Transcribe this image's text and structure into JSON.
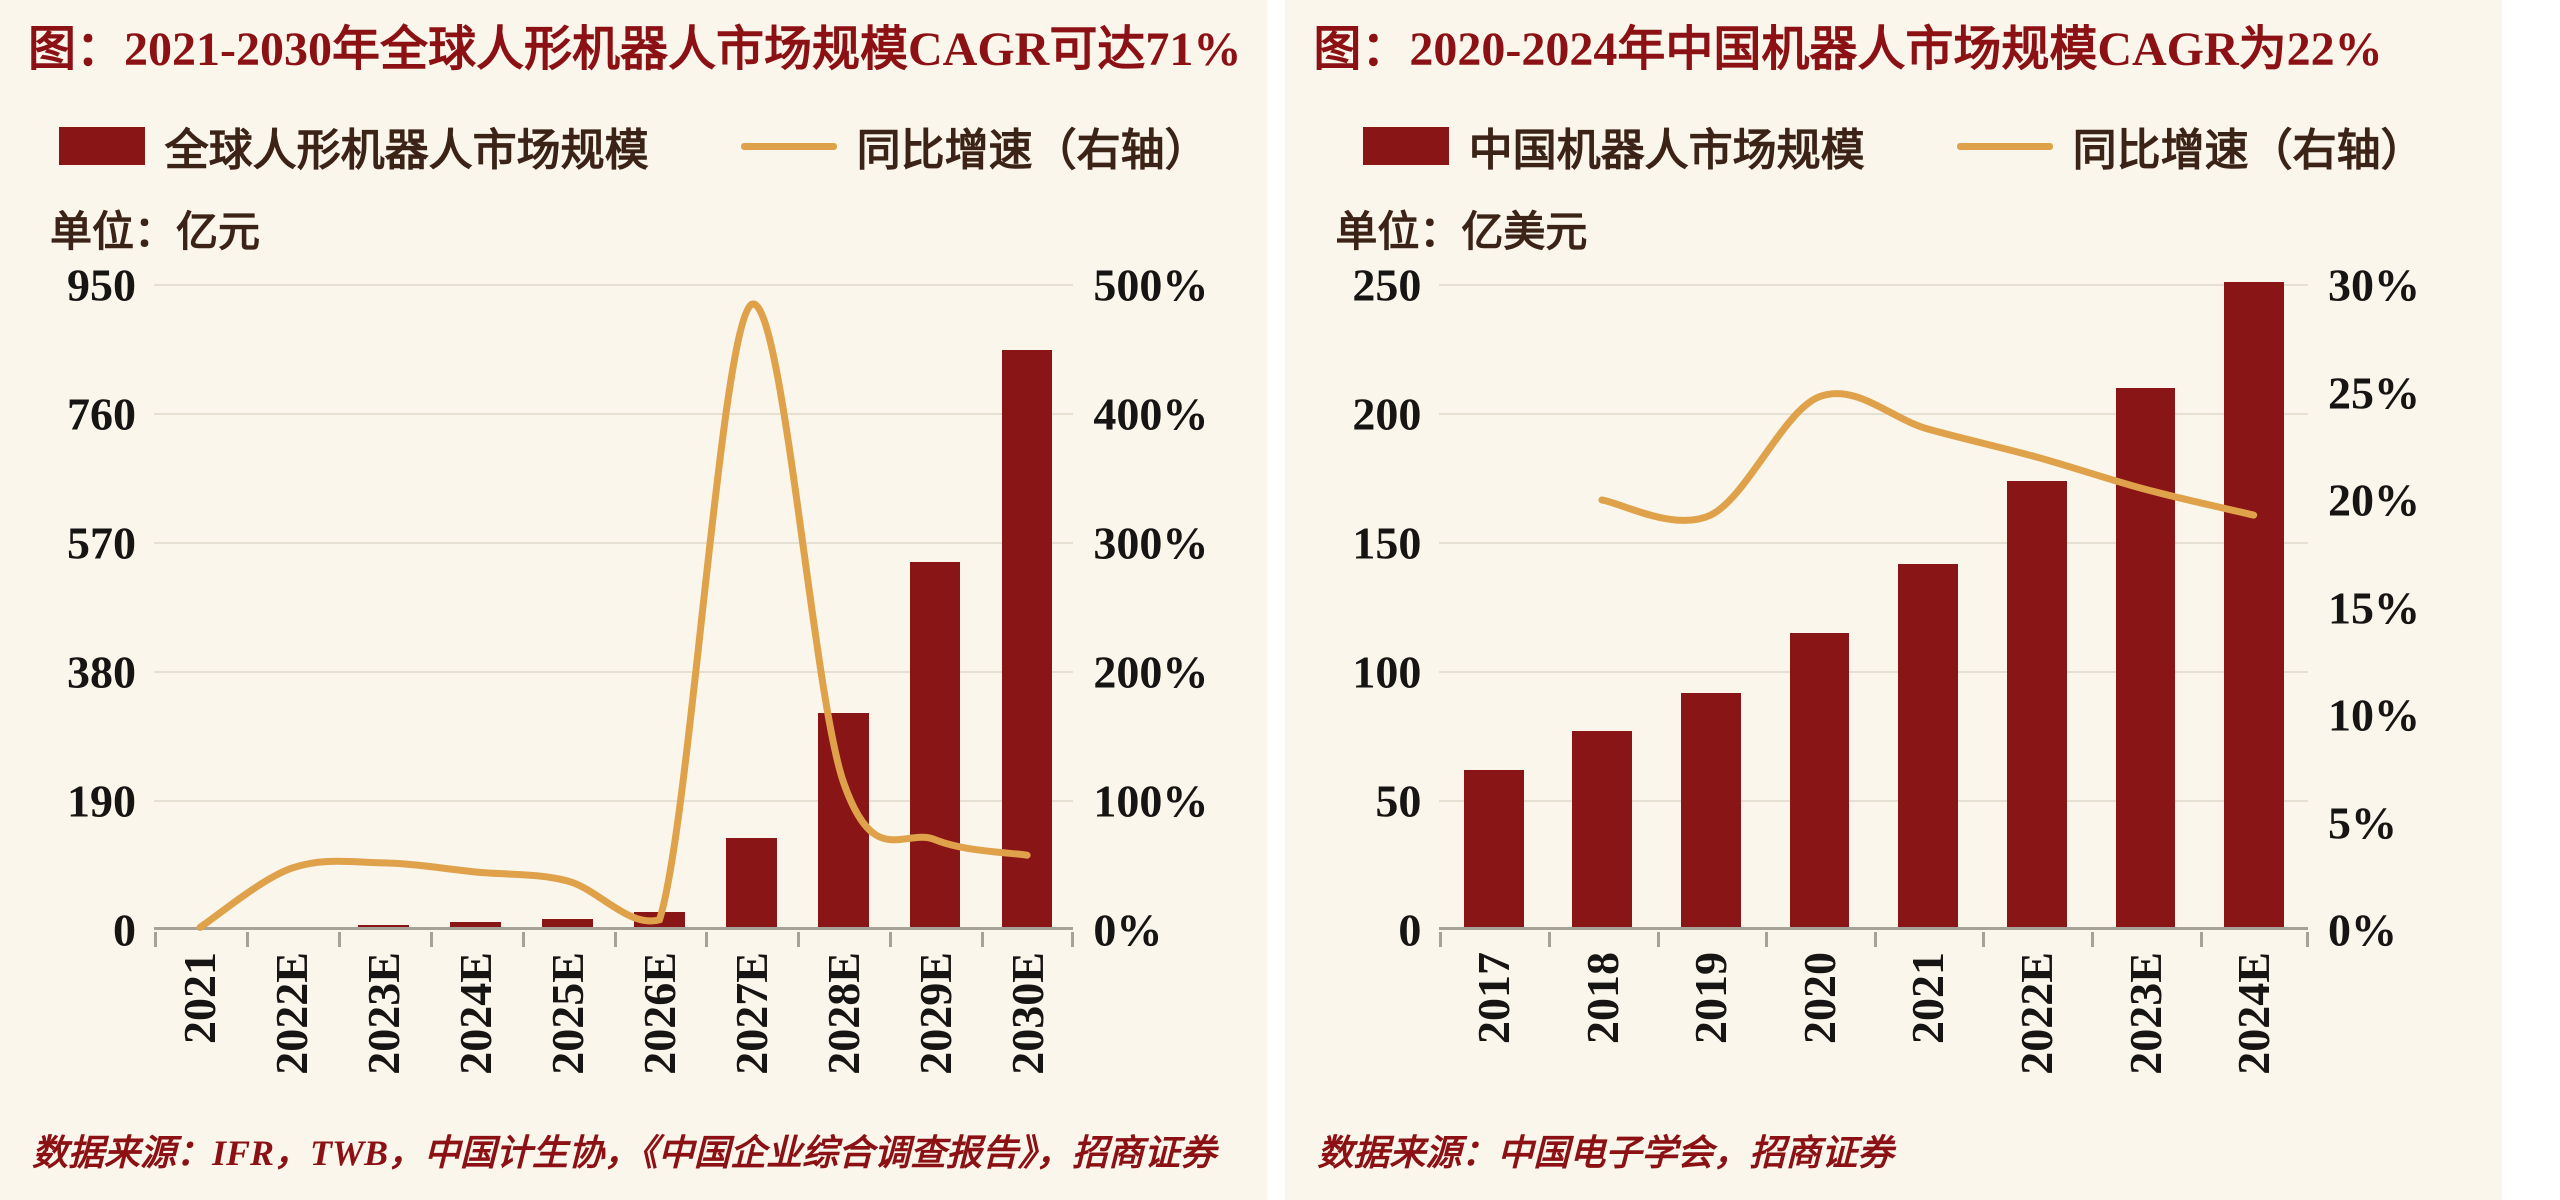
{
  "colors": {
    "background": "#faf6ec",
    "title_maroon": "#8c1114",
    "bar_dark_red": "#8a1517",
    "line_gold": "#dfa24b",
    "axis_text": "#171513"
  },
  "chart_data": [
    {
      "type": "bar+line",
      "title": "图：2021-2030年全球人形机器人市场规模CAGR可达71%",
      "unit_label": "单位：亿元",
      "source": "数据来源：IFR，TWB，中国计生协，《中国企业综合调查报告》，招商证券",
      "categories": [
        "2021",
        "2022E",
        "2023E",
        "2024E",
        "2025E",
        "2026E",
        "2027E",
        "2028E",
        "2029E",
        "2030E"
      ],
      "series": [
        {
          "name": "全球人形机器人市场规模",
          "type": "bar",
          "axis": "left",
          "color": "#8a1517",
          "values": [
            2,
            5,
            8,
            12,
            16,
            26,
            135,
            320,
            542,
            855
          ]
        },
        {
          "name": "同比增速（右轴）",
          "type": "line",
          "axis": "right",
          "color": "#dfa24b",
          "values": [
            2,
            48,
            52,
            45,
            38,
            8,
            485,
            115,
            70,
            58
          ]
        }
      ],
      "left_axis": {
        "max": 950,
        "ticks": [
          0,
          190,
          380,
          570,
          760,
          950
        ],
        "suffix": ""
      },
      "right_axis": {
        "max": 500,
        "ticks": [
          0,
          100,
          200,
          300,
          400,
          500
        ],
        "suffix": "%"
      },
      "grid": true,
      "legend_position": "top"
    },
    {
      "type": "bar+line",
      "title": "图：2020-2024年中国机器人市场规模CAGR为22%",
      "unit_label": "单位：亿美元",
      "source": "数据来源：中国电子学会，招商证券",
      "categories": [
        "2017",
        "2018",
        "2019",
        "2020",
        "2021",
        "2022E",
        "2023E",
        "2024E"
      ],
      "series": [
        {
          "name": "中国机器人市场规模",
          "type": "bar",
          "axis": "left",
          "color": "#8a1517",
          "values": [
            62,
            77,
            92,
            115,
            142,
            174,
            210,
            251
          ]
        },
        {
          "name": "同比增速（右轴）",
          "type": "line",
          "axis": "right",
          "color": "#dfa24b",
          "values": [
            null,
            20,
            19.3,
            24.8,
            23.3,
            22,
            20.5,
            19.3
          ]
        }
      ],
      "left_axis": {
        "max": 250,
        "ticks": [
          0,
          50,
          100,
          150,
          200,
          250
        ],
        "suffix": ""
      },
      "right_axis": {
        "max": 30,
        "ticks": [
          0,
          5,
          10,
          15,
          20,
          25,
          30
        ],
        "suffix": "%"
      },
      "grid": true,
      "legend_position": "top"
    }
  ]
}
